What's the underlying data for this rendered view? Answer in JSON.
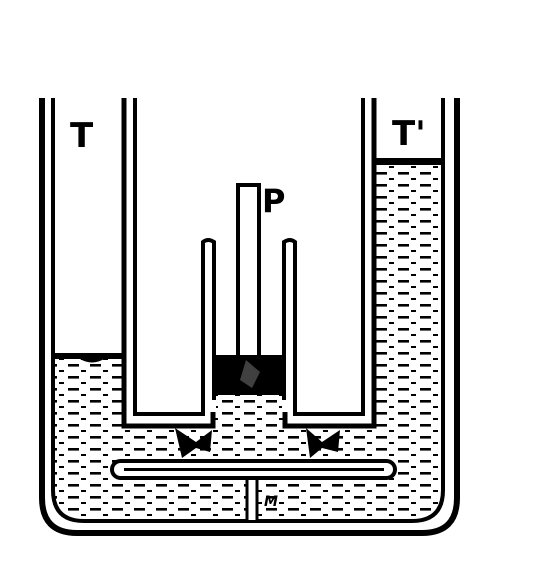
{
  "labels": {
    "left_tube": "T",
    "right_tube": "T'",
    "piston": "P",
    "valve": "M"
  },
  "colors": {
    "ink": "#000000",
    "paper": "#ffffff"
  }
}
